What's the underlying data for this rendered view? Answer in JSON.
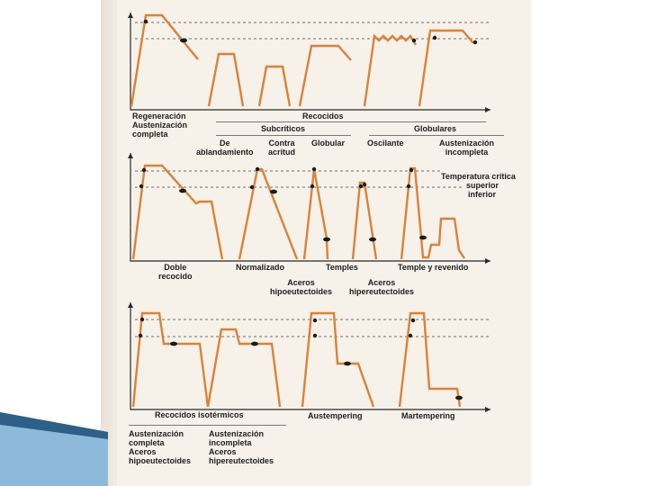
{
  "colors": {
    "paper": "#f6f1e9",
    "curve": "#d9823a",
    "axis": "#2a2a2a",
    "dashed": "#444444",
    "marker": "#1a1a1a",
    "text": "#1e1e1e"
  },
  "panel1": {
    "label_regen": "Regeneración\nAustenización\ncompleta",
    "label_recocidos": "Recocidos",
    "label_subcriticos": "Subcríticos",
    "label_globulares": "Globulares",
    "label_ablandamiento": "De\nablandamiento",
    "label_contra_acritud": "Contra\nacritud",
    "label_globular": "Globular",
    "label_oscilante": "Oscilante",
    "label_aust_incompleta": "Austenización\nincompleta"
  },
  "panel2": {
    "label_temp_critica": "Temperatura crítica",
    "label_superior": "superior",
    "label_inferior": "inferior",
    "label_doble": "Doble\nrecocido",
    "label_normalizado": "Normalizado",
    "label_temples": "Temples",
    "label_temple_revenido": "Temple y revenido",
    "label_hipo": "Aceros\nhipoeutectoides",
    "label_hiper": "Aceros\nhipereutectoides"
  },
  "panel3": {
    "label_isotermicos": "Recocidos isotérmicos",
    "label_austempering": "Austempering",
    "label_martempering": "Martempering",
    "label_aust_completa_hipo": "Austenización\ncompleta\nAceros\nhipoeutectoides",
    "label_aust_incompleta_hiper": "Austenización\nincompleta\nAceros\nhipereutectoides"
  }
}
